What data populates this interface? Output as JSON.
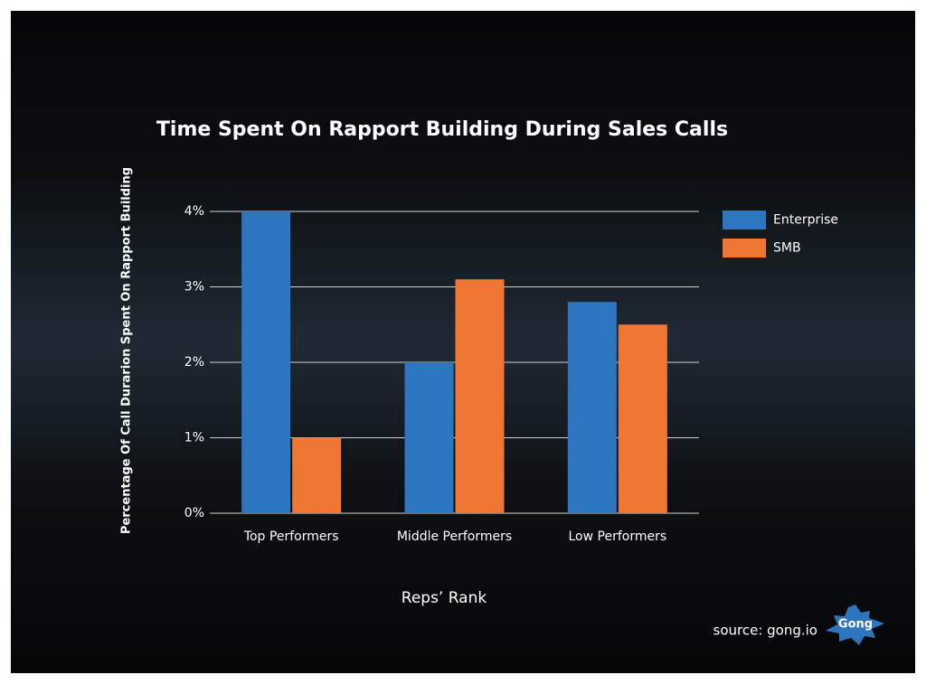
{
  "chart_data": {
    "type": "bar",
    "title": "Time Spent On Rapport Building During Sales Calls",
    "x_label": "Reps’ Rank",
    "y_label": "Percentage Of Call Durarion Spent On Rapport Building",
    "categories": [
      "Top Performers",
      "Middle Performers",
      "Low Performers"
    ],
    "series": [
      {
        "name": "Enterprise",
        "color": "#2e75c0",
        "values": [
          4,
          2,
          2.8
        ]
      },
      {
        "name": "SMB",
        "color": "#ef7733",
        "values": [
          1,
          3.1,
          2.5
        ]
      }
    ],
    "ylim": [
      0,
      4
    ],
    "yticks": [
      {
        "value": 0,
        "label": "0%"
      },
      {
        "value": 1,
        "label": "1%"
      },
      {
        "value": 2,
        "label": "2%"
      },
      {
        "value": 3,
        "label": "3%"
      },
      {
        "value": 4,
        "label": "4%"
      }
    ],
    "grid": true,
    "legend": "right",
    "source": "source: gong.io",
    "logo": "Gong"
  }
}
